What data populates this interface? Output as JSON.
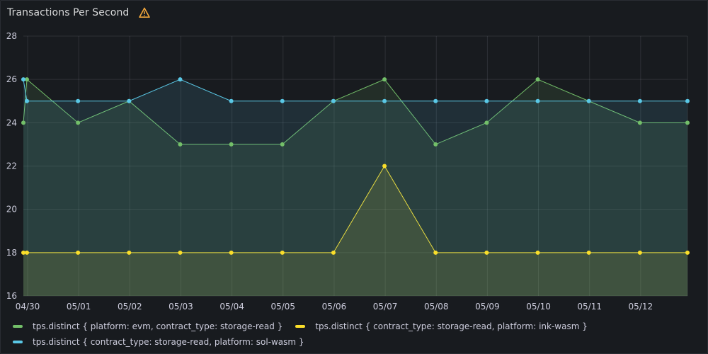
{
  "panel": {
    "title": "Transactions Per Second",
    "warning_icon": "warning-triangle-icon",
    "warning_color": "#f2a73b"
  },
  "chart_data": {
    "type": "line",
    "title": "Transactions Per Second",
    "xlabel": "",
    "ylabel": "",
    "ylim": [
      16,
      28
    ],
    "yticks": [
      16,
      18,
      20,
      22,
      24,
      26,
      28
    ],
    "xlim": [
      "04/29 22:00",
      "05/12 22:00"
    ],
    "xtick_dates": [
      "04/30 00:00",
      "05/01 00:00",
      "05/02 00:00",
      "05/03 00:00",
      "05/04 00:00",
      "05/05 00:00",
      "05/06 00:00",
      "05/07 00:00",
      "05/08 00:00",
      "05/09 00:00",
      "05/10 00:00",
      "05/11 00:00",
      "05/12 00:00"
    ],
    "xtick_labels": [
      "04/30",
      "05/01",
      "05/02",
      "05/03",
      "05/04",
      "05/05",
      "05/06",
      "05/07",
      "05/08",
      "05/09",
      "05/10",
      "05/11",
      "05/12"
    ],
    "grid": true,
    "legend_position": "bottom",
    "series": [
      {
        "name": "tps.distinct { platform: evm, contract_type: storage-read }",
        "color": "#73bf69",
        "x": [
          "04/29 22:00",
          "04/29 23:40",
          "04/30 23:40",
          "05/01 23:40",
          "05/02 23:40",
          "05/03 23:40",
          "05/04 23:40",
          "05/05 23:40",
          "05/06 23:40",
          "05/07 23:40",
          "05/08 23:40",
          "05/09 23:40",
          "05/10 23:40",
          "05/11 23:40"
        ],
        "y": [
          24,
          26,
          24,
          25,
          23,
          23,
          23,
          25,
          26,
          23,
          24,
          26,
          25,
          24
        ]
      },
      {
        "name": "tps.distinct { contract_type: storage-read, platform: ink-wasm }",
        "color": "#fade2a",
        "x": [
          "04/29 22:00",
          "04/29 23:40",
          "04/30 23:40",
          "05/01 23:40",
          "05/02 23:40",
          "05/03 23:40",
          "05/04 23:40",
          "05/05 23:40",
          "05/06 23:40",
          "05/07 23:40",
          "05/08 23:40",
          "05/09 23:40",
          "05/10 23:40",
          "05/11 23:40"
        ],
        "y": [
          18,
          18,
          18,
          18,
          18,
          18,
          18,
          18,
          22,
          18,
          18,
          18,
          18,
          18
        ]
      },
      {
        "name": "tps.distinct { contract_type: storage-read, platform: sol-wasm }",
        "color": "#5ac8e6",
        "x": [
          "04/29 22:00",
          "04/29 23:40",
          "04/30 23:40",
          "05/01 23:40",
          "05/02 23:40",
          "05/03 23:40",
          "05/04 23:40",
          "05/05 23:40",
          "05/06 23:40",
          "05/07 23:40",
          "05/08 23:40",
          "05/09 23:40",
          "05/10 23:40",
          "05/11 23:40"
        ],
        "y": [
          26,
          25,
          25,
          25,
          26,
          25,
          25,
          25,
          25,
          25,
          25,
          25,
          25,
          25
        ]
      }
    ]
  }
}
